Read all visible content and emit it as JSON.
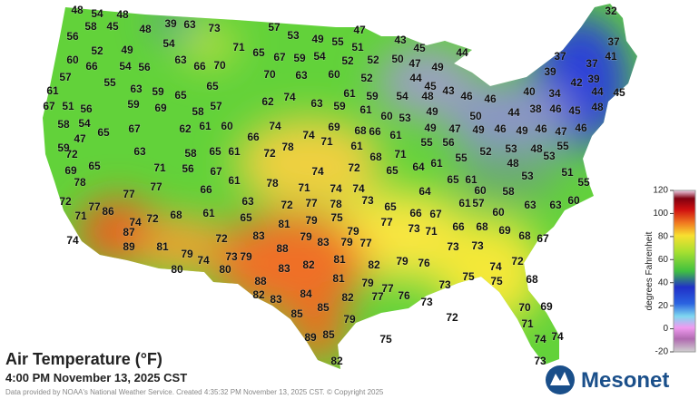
{
  "title": "Air Temperature (°F)",
  "subtitle": "4:00 PM November 13, 2025 CST",
  "credit": "Data provided by NOAA's National Weather Service. Created 4:35:32 PM November 13, 2025 CST. © Copyright 2025",
  "logo": "Mesonet",
  "colorbar": {
    "label": "degrees Fahrenheit",
    "range": [
      -20,
      120
    ],
    "ticks": [
      120,
      100,
      80,
      60,
      40,
      20,
      0,
      -20
    ]
  },
  "stations": [
    48,
    54,
    48,
    39,
    63,
    73,
    57,
    47,
    32,
    58,
    45,
    48,
    53,
    49,
    55,
    43,
    56,
    54,
    71,
    51,
    45,
    37,
    52,
    49,
    65,
    67,
    59,
    54,
    52,
    52,
    50,
    44,
    60,
    63,
    66,
    70,
    47,
    49,
    37,
    41,
    66,
    54,
    56,
    37,
    70,
    63,
    60,
    52,
    44,
    39,
    57,
    55,
    65,
    45,
    43,
    39,
    63,
    59,
    65,
    61,
    59,
    54,
    48,
    46,
    46,
    40,
    34,
    42,
    44,
    45,
    61,
    62,
    74,
    63,
    59,
    67,
    51,
    56,
    59,
    69,
    58,
    57,
    61,
    49,
    44,
    38,
    46,
    45,
    48,
    60,
    53,
    50,
    58,
    54,
    67,
    62,
    61,
    60,
    74,
    69,
    68,
    47,
    49,
    49,
    46,
    49,
    46,
    47,
    46,
    65,
    66,
    74,
    71,
    66,
    61,
    55,
    56,
    53,
    48,
    55,
    72,
    63,
    58,
    65,
    61,
    72,
    78,
    61,
    68,
    71,
    64,
    61,
    55,
    52,
    48,
    53,
    59,
    47,
    65,
    69,
    71,
    56,
    67,
    61,
    78,
    74,
    72,
    65,
    51,
    78,
    77,
    66,
    71,
    74,
    74,
    64,
    65,
    61,
    58,
    53,
    55,
    72,
    77,
    63,
    72,
    77,
    78,
    73,
    65,
    61,
    60,
    57,
    63,
    63,
    60,
    71,
    86,
    77,
    74,
    72,
    68,
    61,
    65,
    81,
    79,
    75,
    77,
    66,
    67,
    60,
    66,
    68,
    69,
    68,
    67,
    74,
    87,
    89,
    81,
    72,
    83,
    88,
    83,
    79,
    77,
    79,
    73,
    71,
    73,
    73,
    79,
    74,
    73,
    79,
    79,
    80,
    80,
    83,
    82,
    81,
    82,
    79,
    76,
    74,
    72,
    88,
    81,
    79,
    77,
    73,
    75,
    75,
    68,
    82,
    83,
    84,
    82,
    77,
    76,
    73,
    72,
    85,
    85,
    79,
    70,
    69,
    75,
    89,
    85,
    82,
    71,
    74,
    74,
    73
  ]
}
